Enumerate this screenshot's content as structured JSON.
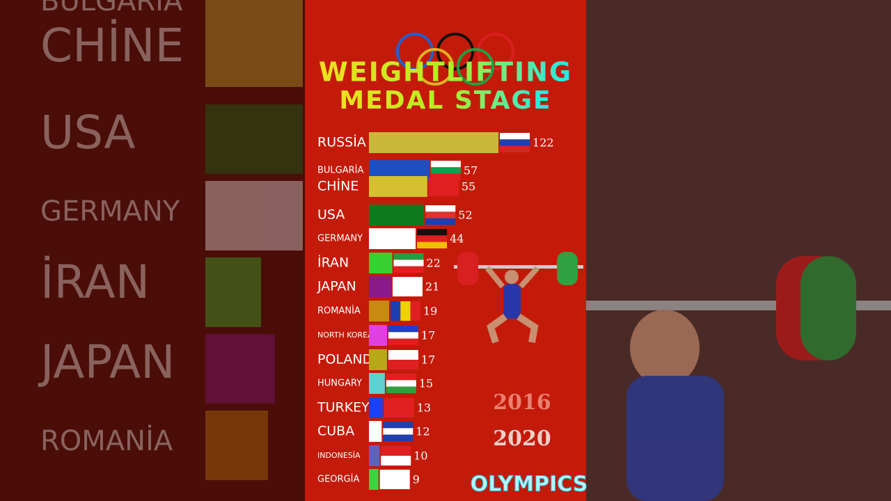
{
  "chart_data": {
    "type": "bar",
    "orientation": "horizontal",
    "title": "WEIGHTLIFTING",
    "subtitle": "MEDAL STAGE",
    "categories": [
      "RUSSİA",
      "BULGARİA",
      "CHİNE",
      "USA",
      "GERMANY",
      "İRAN",
      "JAPAN",
      "ROMANİA",
      "NORTH KOREA",
      "POLAND",
      "HUNGARY",
      "TURKEY",
      "CUBA",
      "INDONESİA",
      "GEORGİA"
    ],
    "values": [
      122,
      57,
      55,
      52,
      44,
      22,
      21,
      19,
      17,
      17,
      15,
      13,
      12,
      10,
      9
    ],
    "colors": [
      "#c8b83a",
      "#1f4ec0",
      "#d4c030",
      "#0e7a1c",
      "#ffffff",
      "#38d030",
      "#8a1a8a",
      "#c88a10",
      "#e040e0",
      "#b8a818",
      "#60d0d0",
      "#2040f0",
      "#ffffff",
      "#6060c0",
      "#40d040"
    ],
    "years": [
      "2016",
      "2020"
    ],
    "footer": "OLYMPICS"
  },
  "background_labels": [
    "BULGARİA",
    "CHİNE",
    "USA",
    "GERMANY",
    "İRAN",
    "JAPAN",
    "ROMANİA"
  ]
}
